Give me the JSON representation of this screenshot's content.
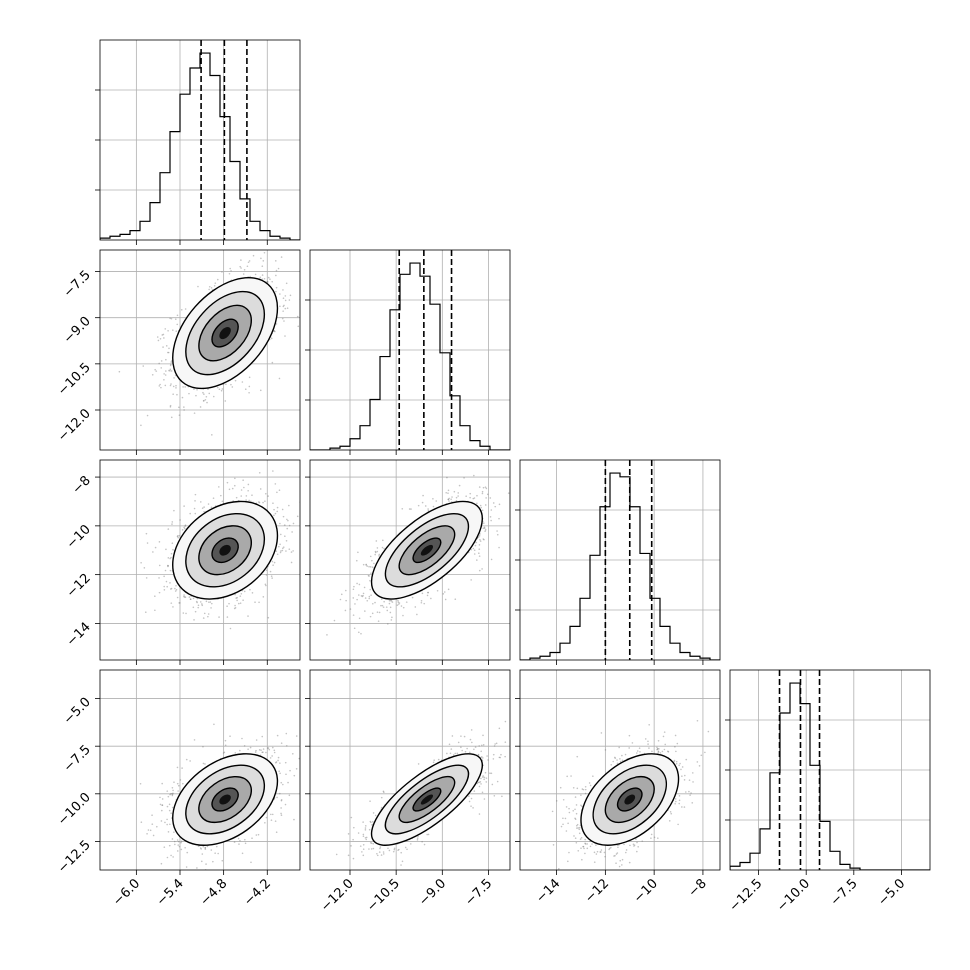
{
  "chart_data": {
    "type": "corner",
    "n_params": 4,
    "grid": true,
    "colors": {
      "line": "#000000",
      "grid": "#b0b0b0",
      "samples": "#7a7a7a",
      "fill_light": "#f4f4f4",
      "fill_mid": "#d9d9d9"
    },
    "params": [
      {
        "index": 0,
        "range": [
          -6.5,
          -3.75
        ],
        "mean": -4.78,
        "sd": 0.36,
        "quantiles": [
          -5.11,
          -4.79,
          -4.48
        ],
        "ticks": [
          -6.0,
          -5.4,
          -4.8,
          -4.2
        ],
        "tick_labels": [
          "−6.0",
          "−5.4",
          "−4.8",
          "−4.2"
        ]
      },
      {
        "index": 1,
        "range": [
          -13.3,
          -6.8
        ],
        "mean": -9.5,
        "sd": 0.9,
        "quantiles": [
          -10.4,
          -9.6,
          -8.7
        ],
        "ticks": [
          -12.0,
          -10.5,
          -9.0,
          -7.5
        ],
        "tick_labels": [
          "−12.0",
          "−10.5",
          "−9.0",
          "−7.5"
        ]
      },
      {
        "index": 2,
        "range": [
          -15.5,
          -7.3
        ],
        "mean": -11.0,
        "sd": 1.0,
        "quantiles": [
          -12.0,
          -11.0,
          -10.1
        ],
        "ticks": [
          -14,
          -12,
          -10,
          -8
        ],
        "tick_labels": [
          "−14",
          "−12",
          "−10",
          "−8"
        ]
      },
      {
        "index": 3,
        "range": [
          -14.0,
          -3.5
        ],
        "mean": -10.3,
        "sd": 1.2,
        "quantiles": [
          -11.4,
          -10.3,
          -9.3
        ],
        "ticks": [
          -12.5,
          -10.0,
          -7.5,
          -5.0
        ],
        "tick_labels": [
          "−12.5",
          "−10.0",
          "−7.5",
          "−5.0"
        ]
      }
    ],
    "histograms": [
      {
        "param": 0,
        "bins": 20,
        "counts": [
          1,
          2,
          3,
          5,
          10,
          20,
          36,
          58,
          78,
          92,
          100,
          88,
          66,
          42,
          22,
          10,
          5,
          2,
          1,
          0
        ]
      },
      {
        "param": 1,
        "bins": 20,
        "counts": [
          0,
          0,
          1,
          2,
          6,
          13,
          27,
          50,
          75,
          94,
          100,
          93,
          78,
          52,
          29,
          13,
          5,
          2,
          0,
          0
        ]
      },
      {
        "param": 2,
        "bins": 20,
        "counts": [
          0,
          1,
          2,
          4,
          9,
          18,
          33,
          56,
          82,
          100,
          98,
          82,
          57,
          33,
          18,
          9,
          4,
          2,
          1,
          0
        ]
      },
      {
        "param": 3,
        "bins": 20,
        "counts": [
          2,
          4,
          9,
          22,
          52,
          84,
          100,
          89,
          56,
          26,
          10,
          3,
          1,
          0,
          0,
          0,
          0,
          0,
          0,
          0
        ]
      }
    ],
    "correlations": [
      {
        "pair": [
          0,
          1
        ],
        "rho": 0.45
      },
      {
        "pair": [
          0,
          2
        ],
        "rho": 0.3
      },
      {
        "pair": [
          1,
          2
        ],
        "rho": 0.65
      },
      {
        "pair": [
          0,
          3
        ],
        "rho": 0.4
      },
      {
        "pair": [
          1,
          3
        ],
        "rho": 0.75
      },
      {
        "pair": [
          2,
          3
        ],
        "rho": 0.45
      }
    ]
  }
}
